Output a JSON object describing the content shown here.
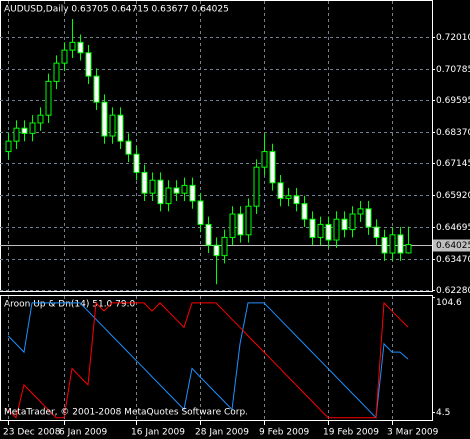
{
  "chart_data": [
    {
      "type": "candlestick",
      "title": "AUDUSD,Daily  0.63705 0.64715 0.63677 0.64025",
      "categories": [
        "23 Dec 2008",
        null,
        null,
        null,
        null,
        null,
        null,
        "6 Jan 2009",
        null,
        null,
        null,
        null,
        null,
        null,
        null,
        null,
        "16 Jan 2009",
        null,
        null,
        null,
        null,
        null,
        null,
        null,
        "28 Jan 2009",
        null,
        null,
        null,
        null,
        null,
        null,
        null,
        "9 Feb 2009",
        null,
        null,
        null,
        null,
        null,
        null,
        null,
        "19 Feb 2009",
        null,
        null,
        null,
        null,
        null,
        null,
        null,
        "3 Mar 2009",
        null,
        null
      ],
      "open": [
        0.676,
        0.68,
        0.685,
        0.683,
        0.687,
        0.69,
        0.703,
        0.71,
        0.715,
        0.718,
        0.714,
        0.705,
        0.695,
        0.682,
        0.69,
        0.68,
        0.675,
        0.668,
        0.66,
        0.665,
        0.656,
        0.662,
        0.66,
        0.663,
        0.657,
        0.648,
        0.64,
        0.636,
        0.643,
        0.652,
        0.644,
        0.655,
        0.67,
        0.676,
        0.664,
        0.658,
        0.659,
        0.656,
        0.65,
        0.643,
        0.648,
        0.642,
        0.65,
        0.646,
        0.652,
        0.654,
        0.647,
        0.643,
        0.637,
        0.644,
        0.63705
      ],
      "high": [
        0.683,
        0.688,
        0.688,
        0.69,
        0.693,
        0.706,
        0.713,
        0.718,
        0.727,
        0.721,
        0.717,
        0.708,
        0.698,
        0.693,
        0.693,
        0.683,
        0.678,
        0.671,
        0.668,
        0.668,
        0.665,
        0.665,
        0.666,
        0.666,
        0.66,
        0.651,
        0.643,
        0.646,
        0.655,
        0.655,
        0.658,
        0.673,
        0.683,
        0.679,
        0.667,
        0.662,
        0.662,
        0.659,
        0.653,
        0.651,
        0.651,
        0.653,
        0.653,
        0.655,
        0.657,
        0.657,
        0.65,
        0.646,
        0.647,
        0.647,
        0.64715
      ],
      "low": [
        0.673,
        0.677,
        0.68,
        0.68,
        0.684,
        0.687,
        0.7,
        0.707,
        0.712,
        0.711,
        0.702,
        0.692,
        0.679,
        0.679,
        0.677,
        0.672,
        0.665,
        0.657,
        0.657,
        0.653,
        0.653,
        0.657,
        0.657,
        0.654,
        0.645,
        0.637,
        0.625,
        0.633,
        0.64,
        0.641,
        0.641,
        0.652,
        0.667,
        0.661,
        0.655,
        0.655,
        0.653,
        0.647,
        0.64,
        0.64,
        0.639,
        0.639,
        0.643,
        0.643,
        0.649,
        0.644,
        0.64,
        0.634,
        0.634,
        0.634,
        0.63677
      ],
      "close": [
        0.68,
        0.685,
        0.683,
        0.687,
        0.69,
        0.703,
        0.71,
        0.715,
        0.718,
        0.714,
        0.705,
        0.695,
        0.682,
        0.69,
        0.68,
        0.675,
        0.668,
        0.66,
        0.665,
        0.656,
        0.662,
        0.66,
        0.663,
        0.657,
        0.648,
        0.64,
        0.636,
        0.643,
        0.652,
        0.644,
        0.655,
        0.67,
        0.676,
        0.664,
        0.658,
        0.659,
        0.656,
        0.65,
        0.643,
        0.648,
        0.642,
        0.65,
        0.646,
        0.652,
        0.654,
        0.647,
        0.643,
        0.637,
        0.644,
        0.637,
        0.64025
      ],
      "bull_color": "#000000",
      "bear_color": "#ffffff",
      "outline_color": "#00ff00",
      "ylim": [
        0.6224,
        0.7339
      ],
      "yticks": [
        {
          "value": 0.7201,
          "label": "0.72010"
        },
        0.70785,
        0.69595,
        {
          "value": 0.6837,
          "label": "0.68370"
        },
        0.67145,
        {
          "value": 0.6592,
          "label": "0.65920"
        },
        0.64695,
        {
          "value": 0.6347,
          "label": "0.63470"
        },
        {
          "value": 0.6228,
          "label": "0.62280"
        }
      ],
      "last_price": 0.64025,
      "grid": true
    },
    {
      "type": "line",
      "title": "Aroon Up & Dn(14) 51.0 79.0",
      "series": [
        {
          "name": "Aroon Up",
          "color": "#1e90ff",
          "values": [
            71.4,
            64.3,
            57.1,
            100,
            100,
            100,
            100,
            100,
            100,
            100,
            92.9,
            85.7,
            78.6,
            71.4,
            64.3,
            57.1,
            50,
            42.9,
            35.7,
            28.6,
            21.4,
            14.3,
            7.1,
            42.9,
            35.7,
            28.6,
            21.4,
            14.3,
            7.1,
            64.3,
            100,
            100,
            100,
            92.9,
            85.7,
            78.6,
            71.4,
            64.3,
            57.1,
            50,
            42.9,
            35.7,
            28.6,
            21.4,
            14.3,
            7.1,
            0,
            64.3,
            57.1,
            57.1,
            51
          ]
        },
        {
          "name": "Aroon Dn",
          "color": "#ff0000",
          "values": [
            7.1,
            0,
            28.6,
            21.4,
            14.3,
            7.1,
            0,
            0,
            42.9,
            35.7,
            28.6,
            100,
            92.9,
            100,
            100,
            100,
            100,
            100,
            92.9,
            100,
            92.9,
            85.7,
            78.6,
            100,
            100,
            100,
            100,
            92.9,
            85.7,
            78.6,
            71.4,
            64.3,
            57.1,
            50,
            42.9,
            35.7,
            28.6,
            21.4,
            14.3,
            7.1,
            0,
            0,
            0,
            0,
            0,
            0,
            0,
            100,
            92.9,
            85.7,
            79
          ]
        }
      ],
      "ylim": [
        -2,
        106
      ],
      "yticks": [
        104.6,
        4.5
      ]
    }
  ],
  "watermark": "MetaTrader, © 2001-2008 MetaQuotes Software Corp."
}
